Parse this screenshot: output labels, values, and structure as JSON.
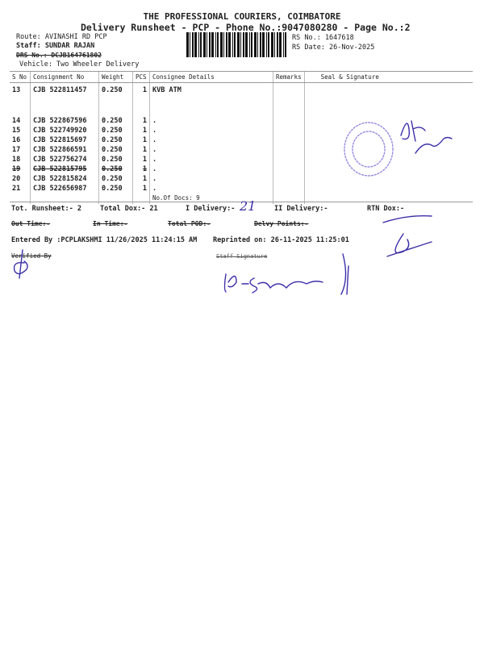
{
  "header": {
    "company": "THE PROFESSIONAL COURIERS, COIMBATORE",
    "subtitle": "Delivery Runsheet - PCP - Phone No.:9047080280 - Page No.:2",
    "route": "Route: AVINASHI RD PCP",
    "staff": "Staff: SUNDAR RAJAN",
    "drs": "DRS No.: DCJB164761802",
    "vehicle": "Vehicle: Two Wheeler Delivery",
    "rs_no": "RS No.: 1647618",
    "rs_date": "RS Date: 26-Nov-2025"
  },
  "table": {
    "columns": [
      "S No",
      "Consignment No",
      "Weight",
      "PCS",
      "Consignee Details",
      "Remarks",
      "Seal & Signature"
    ],
    "rows": [
      {
        "sno": "13",
        "cn": "CJB 522811457",
        "weight": "0.250",
        "pcs": "1",
        "consignee": "KVB ATM"
      },
      {
        "sno": "14",
        "cn": "CJB 522867596",
        "weight": "0.250",
        "pcs": "1",
        "consignee": "."
      },
      {
        "sno": "15",
        "cn": "CJB 522749920",
        "weight": "0.250",
        "pcs": "1",
        "consignee": "."
      },
      {
        "sno": "16",
        "cn": "CJB 522815697",
        "weight": "0.250",
        "pcs": "1",
        "consignee": "."
      },
      {
        "sno": "17",
        "cn": "CJB 522866591",
        "weight": "0.250",
        "pcs": "1",
        "consignee": "."
      },
      {
        "sno": "18",
        "cn": "CJB 522756274",
        "weight": "0.250",
        "pcs": "1",
        "consignee": "."
      },
      {
        "sno": "19",
        "cn": "CJB 522815795",
        "weight": "0.250",
        "pcs": "1",
        "consignee": ".",
        "struck": true
      },
      {
        "sno": "20",
        "cn": "CJB 522815824",
        "weight": "0.250",
        "pcs": "1",
        "consignee": "."
      },
      {
        "sno": "21",
        "cn": "CJB 522656987",
        "weight": "0.250",
        "pcs": "1",
        "consignee": "."
      }
    ],
    "doc_count": "No.Of Docs: 9"
  },
  "summary": {
    "tot_runsheet": "Tot. Runsheet:- 2",
    "total_dox": "Total Dox:-   21",
    "i_delivery": "I Delivery:-",
    "i_delivery_handwritten": "21",
    "ii_delivery": "II Delivery:-",
    "rtn_dox": "RTN Dox:-",
    "out_time": "Out Time:-",
    "in_time": "In Time:-",
    "total_pod": "Total POD:-",
    "delvy_points": "Delvy Points:-",
    "entered_by": "Entered By :PCPLAKSHMI 11/26/2025 11:24:15 AM",
    "reprinted": "Reprinted on: 26-11-2025 11:25:01",
    "verified_by": "Verified By",
    "staff_signature": "Staff Signature"
  },
  "colors": {
    "ink": "#3b2fa8",
    "stamp": "#6a5acd",
    "text": "#222222"
  }
}
